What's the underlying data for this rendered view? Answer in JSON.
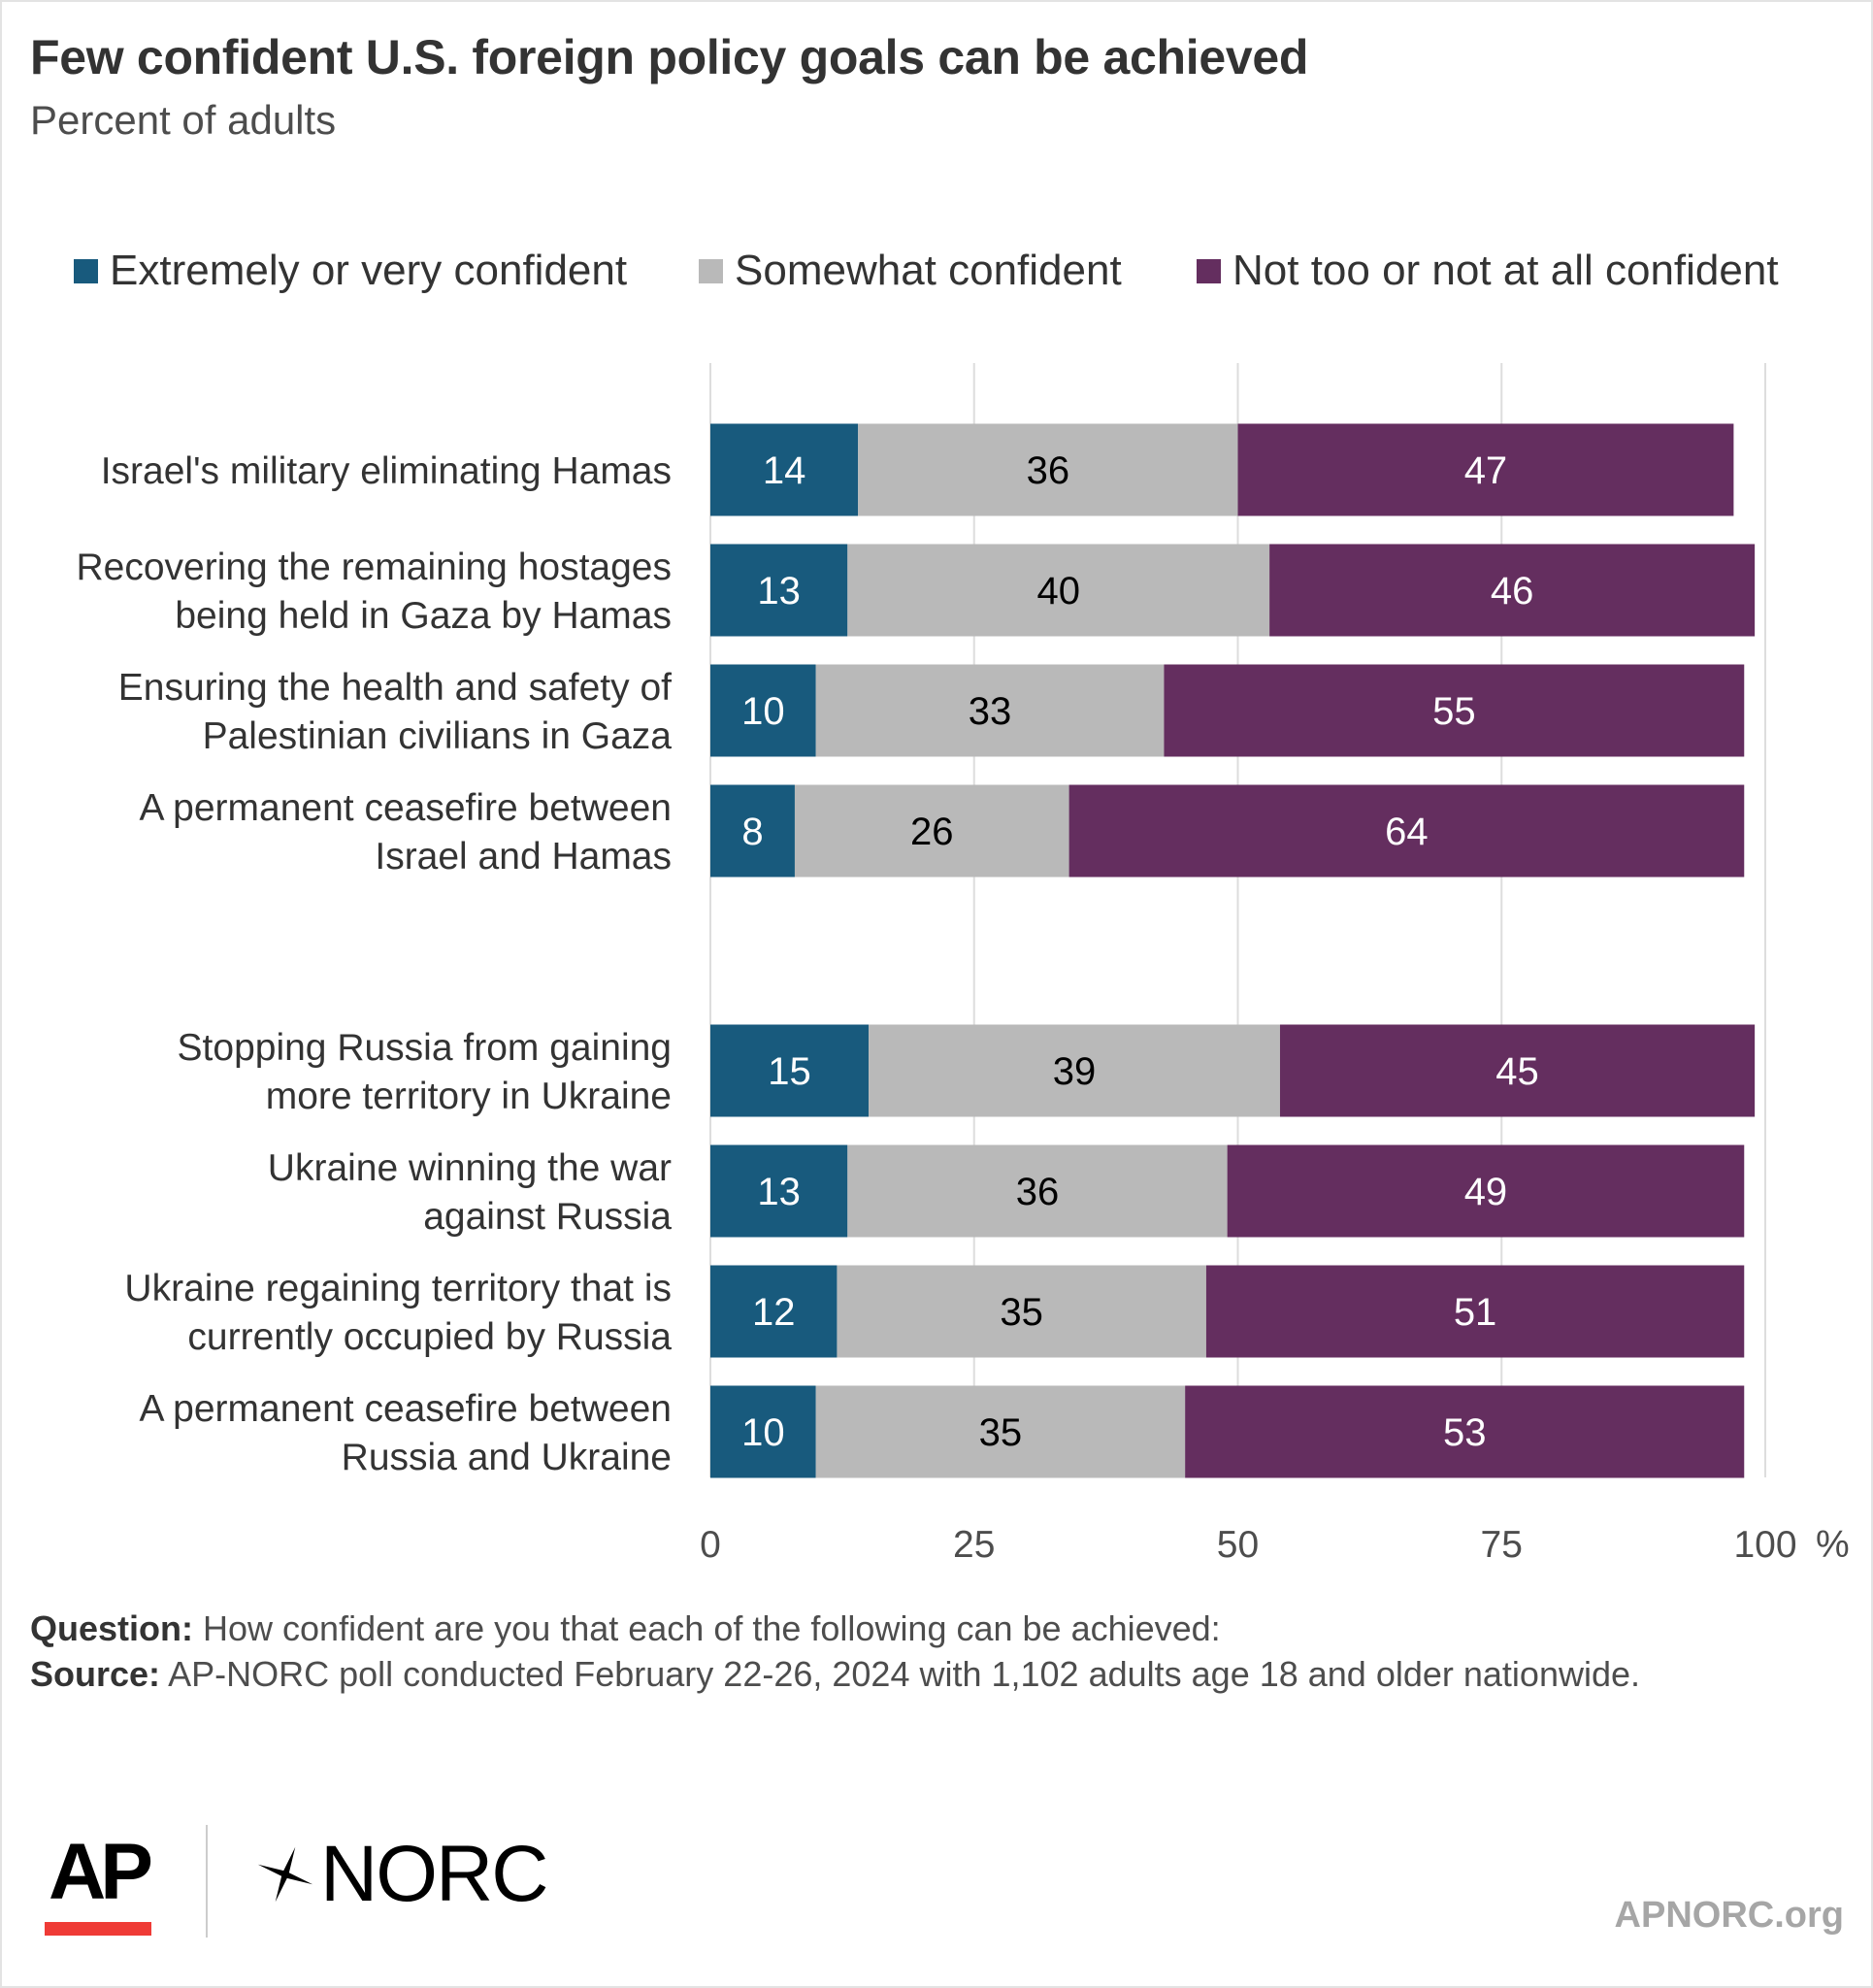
{
  "title": "Few confident U.S. foreign policy goals can be achieved",
  "subtitle": "Percent of adults",
  "colors": {
    "extremely": "#185a7d",
    "somewhat": "#b9b9b9",
    "not": "#642e5f",
    "grid": "#dddddd"
  },
  "chart_data": {
    "type": "bar",
    "orientation": "horizontal",
    "stacked": true,
    "xlim": [
      0,
      100
    ],
    "x_ticks": [
      "0",
      "25",
      "50",
      "75",
      "100"
    ],
    "x_unit": "%",
    "legend_position": "top",
    "grid": true,
    "series": [
      {
        "name": "Extremely or very confident",
        "color": "#185a7d"
      },
      {
        "name": "Somewhat confident",
        "color": "#b9b9b9"
      },
      {
        "name": "Not too or not at all confident",
        "color": "#642e5f"
      }
    ],
    "groups": [
      {
        "rows": [
          {
            "label": [
              "Israel's military eliminating Hamas"
            ],
            "values": [
              14,
              36,
              47
            ]
          },
          {
            "label": [
              "Recovering the remaining hostages",
              "being held in Gaza by Hamas"
            ],
            "values": [
              13,
              40,
              46
            ]
          },
          {
            "label": [
              "Ensuring the health and safety of",
              "Palestinian civilians in Gaza"
            ],
            "values": [
              10,
              33,
              55
            ]
          },
          {
            "label": [
              "A permanent ceasefire between",
              "Israel and Hamas"
            ],
            "values": [
              8,
              26,
              64
            ]
          }
        ]
      },
      {
        "rows": [
          {
            "label": [
              "Stopping Russia from gaining",
              "more territory in Ukraine"
            ],
            "values": [
              15,
              39,
              45
            ]
          },
          {
            "label": [
              "Ukraine winning the war",
              "against Russia"
            ],
            "values": [
              13,
              36,
              49
            ]
          },
          {
            "label": [
              "Ukraine regaining territory that is",
              "currently occupied by Russia"
            ],
            "values": [
              12,
              35,
              51
            ]
          },
          {
            "label": [
              "A permanent ceasefire between",
              "Russia and Ukraine"
            ],
            "values": [
              10,
              35,
              53
            ]
          }
        ]
      }
    ]
  },
  "footer": {
    "question_label": "Question:",
    "question_text": " How confident are you that each of the following can be achieved:",
    "source_label": "Source:",
    "source_text": " AP-NORC poll conducted February 22-26, 2024 with 1,102 adults age 18 and older nationwide."
  },
  "logos": {
    "ap": "AP",
    "norc": "NORC"
  },
  "site": "APNORC.org"
}
